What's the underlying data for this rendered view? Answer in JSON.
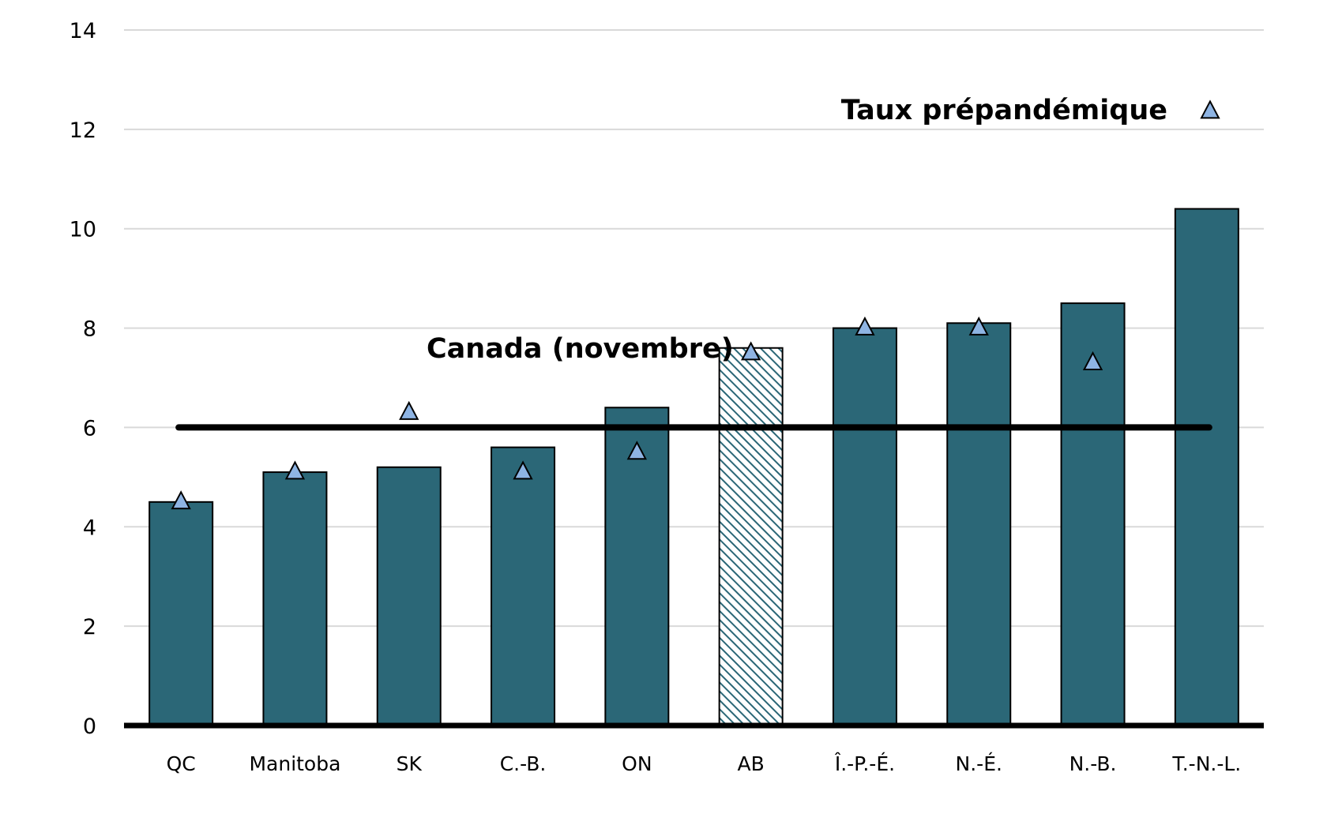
{
  "chart_data": {
    "type": "bar",
    "title": "",
    "xlabel": "",
    "ylabel": "",
    "ylim": [
      0,
      14
    ],
    "yticks": [
      "0",
      "2",
      "4",
      "6",
      "8",
      "10",
      "12",
      "14"
    ],
    "grid": true,
    "categories": [
      "QC",
      "Manitoba",
      "SK",
      "C.-B.",
      "ON",
      "AB",
      "Î.-P.-É.",
      "N.-É.",
      "N.-B.",
      "T.-N.-L."
    ],
    "series": [
      {
        "values": [
          4.5,
          5.1,
          5.2,
          5.6,
          6.4,
          7.6,
          8.0,
          8.1,
          8.5,
          10.4
        ],
        "color": "#2b6777",
        "hatched_categories": [
          "AB"
        ]
      },
      {
        "name": "Taux prépandémique",
        "marker": "triangle",
        "color": "#8eb4e3",
        "values": [
          4.5,
          5.1,
          6.3,
          5.1,
          5.5,
          7.5,
          8.0,
          8.0,
          7.3,
          null
        ]
      }
    ],
    "reference_line": {
      "label": "Canada (novembre)",
      "value": 6.0,
      "color": "#000000"
    },
    "legend": {
      "label": "Taux prépandémique",
      "placement": "top-right"
    }
  },
  "colors": {
    "bar": "#2b6777",
    "bar_outline": "#000000",
    "hatch": "#2b6777",
    "marker_fill": "#8eb4e3",
    "gridline": "#d9d9d9",
    "axis": "#000000"
  }
}
